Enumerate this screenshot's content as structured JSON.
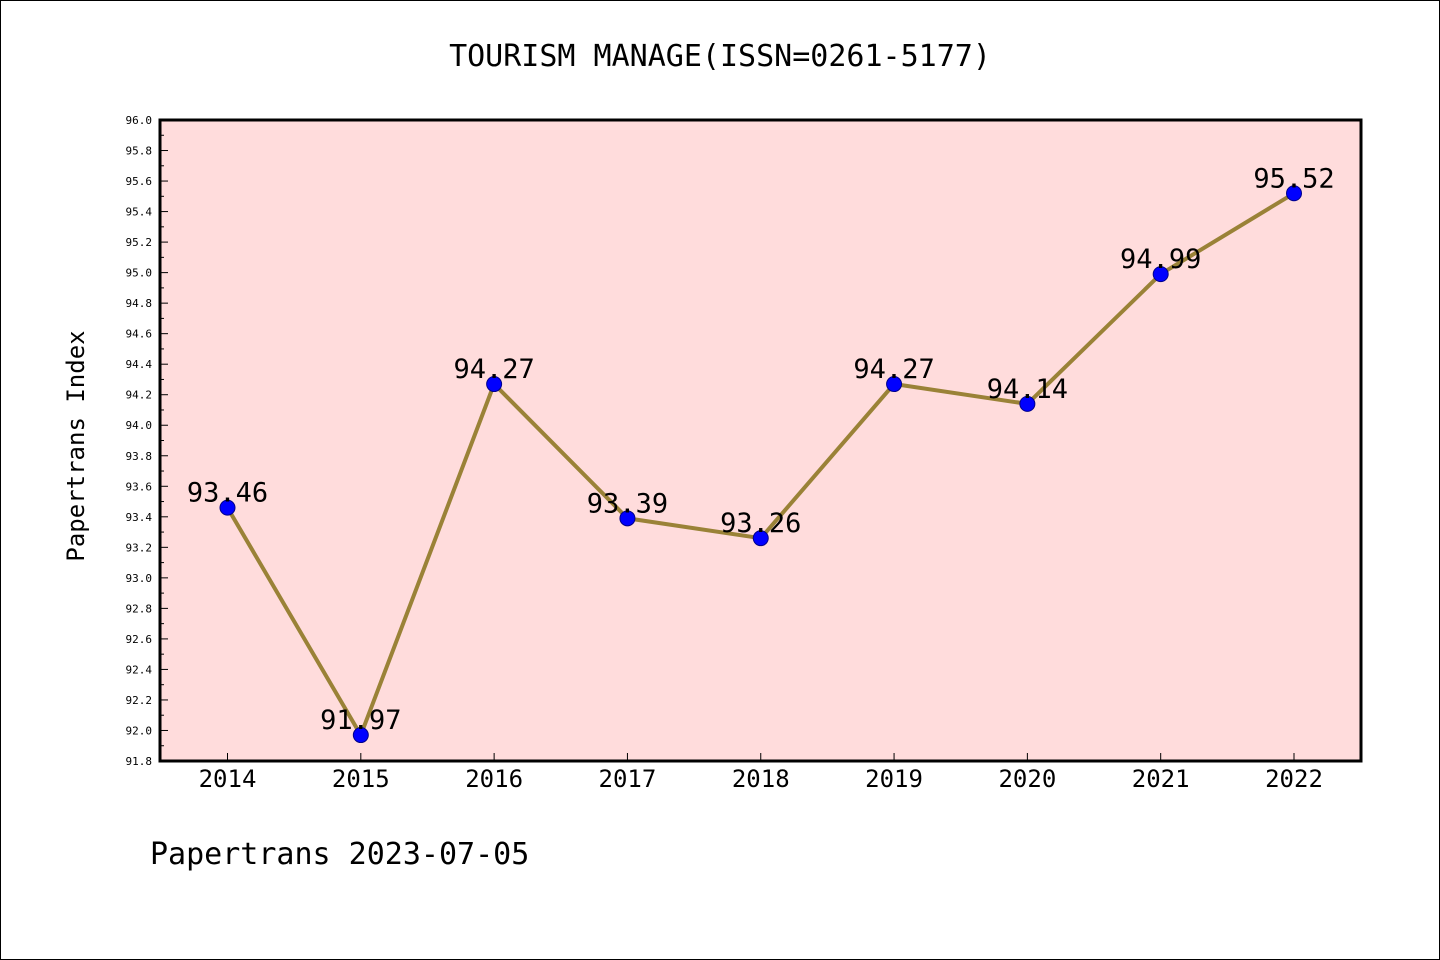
{
  "chart_data": {
    "type": "line",
    "title": "TOURISM MANAGE(ISSN=0261-5177)",
    "xlabel": "",
    "ylabel": "Papertrans Index",
    "categories": [
      "2014",
      "2015",
      "2016",
      "2017",
      "2018",
      "2019",
      "2020",
      "2021",
      "2022"
    ],
    "values": [
      93.46,
      91.97,
      94.27,
      93.39,
      93.26,
      94.27,
      94.14,
      94.99,
      95.52
    ],
    "value_labels": [
      "93.46",
      "91.97",
      "94.27",
      "93.39",
      "93.26",
      "94.27",
      "94.14",
      "94.99",
      "95.52"
    ],
    "ylim": [
      91.8,
      96.0
    ],
    "yticks": [
      "91.8",
      "92.0",
      "92.2",
      "92.4",
      "92.6",
      "92.8",
      "93.0",
      "93.2",
      "93.4",
      "93.6",
      "93.8",
      "94.0",
      "94.2",
      "94.4",
      "94.6",
      "94.8",
      "95.0",
      "95.2",
      "95.4",
      "95.6",
      "95.8",
      "96.0"
    ],
    "grid": false,
    "legend": "none",
    "colors": {
      "plot_background": "#ffdcdc",
      "line": "#9a8237",
      "marker": "#0000ff"
    }
  },
  "footer": {
    "text": "Papertrans 2023-07-05"
  }
}
